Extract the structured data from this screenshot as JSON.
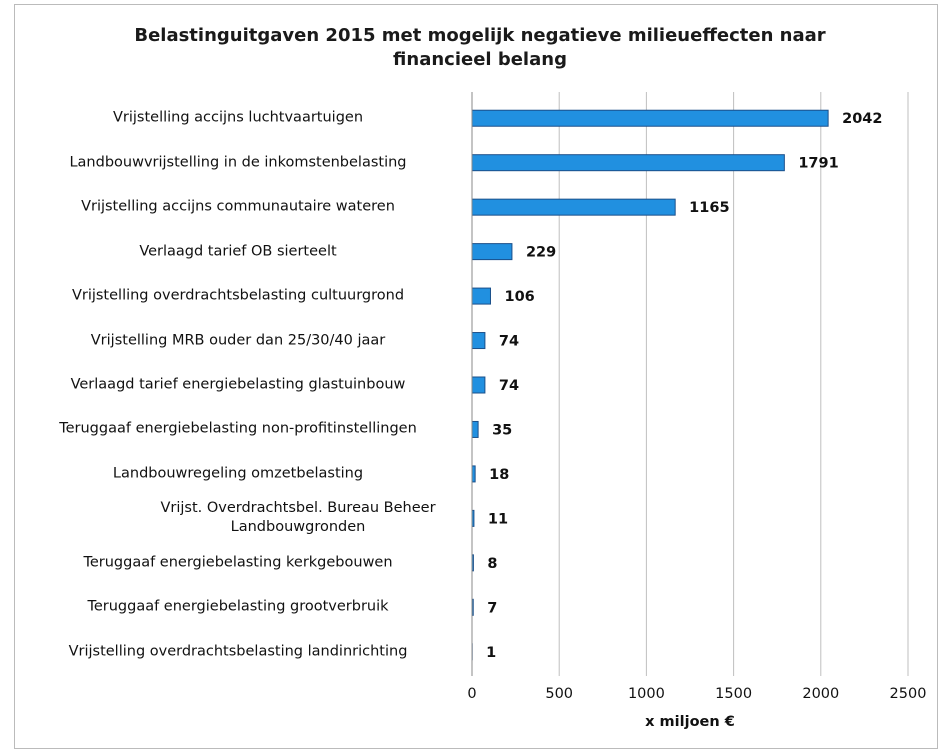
{
  "chart_data": {
    "type": "barh",
    "title": "Belastinguitgaven 2015 met mogelijk negatieve milieueffecten naar financieel belang",
    "categories": [
      "Vrijstelling accijns luchtvaartuigen",
      "Landbouwvrijstelling in de inkomstenbelasting",
      "Vrijstelling accijns communautaire wateren",
      "Verlaagd tarief OB sierteelt",
      "Vrijstelling overdrachtsbelasting cultuurgrond",
      "Vrijstelling MRB ouder dan 25/30/40 jaar",
      "Verlaagd tarief energiebelasting glastuinbouw",
      "Teruggaaf energiebelasting non-profitinstellingen",
      "Landbouwregeling omzetbelasting",
      "Vrijst. Overdrachtsbel. Bureau Beheer Landbouwgronden",
      "Teruggaaf energiebelasting kerkgebouwen",
      "Teruggaaf energiebelasting grootverbruik",
      "Vrijstelling overdrachtsbelasting landinrichting"
    ],
    "values": [
      2042,
      1791,
      1165,
      229,
      106,
      74,
      74,
      35,
      18,
      11,
      8,
      7,
      1
    ],
    "color": "#2190e0",
    "xlabel": "x miljoen €",
    "xlim": [
      0,
      2500
    ],
    "xticks": [
      0,
      500,
      1000,
      1500,
      2000,
      2500
    ],
    "grid": true
  }
}
